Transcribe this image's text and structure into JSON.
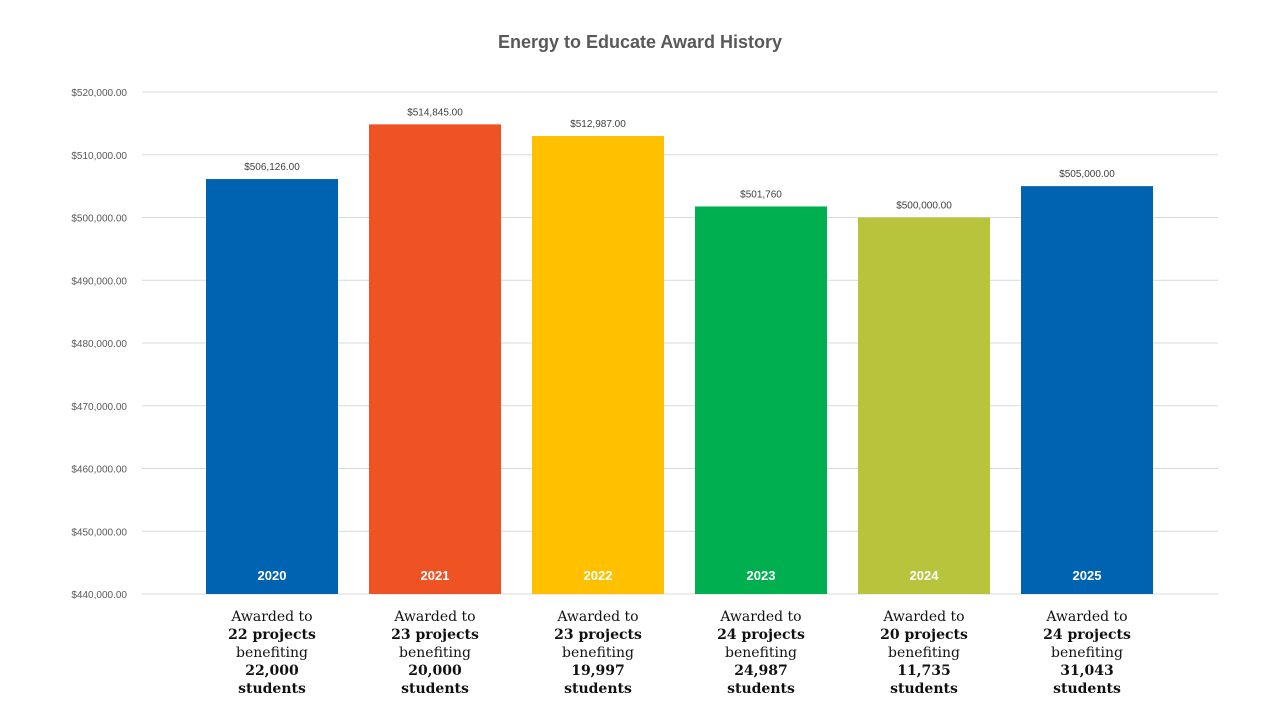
{
  "chart_data": {
    "type": "bar",
    "title": "Energy to Educate Award History",
    "categories": [
      "2020",
      "2021",
      "2022",
      "2023",
      "2024",
      "2025"
    ],
    "values": [
      506126,
      514845,
      512987,
      501760,
      500000,
      505000
    ],
    "data_labels": [
      "$506,126.00",
      "$514,845.00",
      "$512,987.00",
      "$501,760",
      "$500,000.00",
      "$505,000.00"
    ],
    "colors": [
      "#0063B1",
      "#F05323",
      "#FFC000",
      "#00B050",
      "#B8C43B",
      "#0063B1"
    ],
    "ylim": [
      440000,
      520000
    ],
    "yticks": [
      440000,
      450000,
      460000,
      470000,
      480000,
      490000,
      500000,
      510000,
      520000
    ],
    "ytick_labels": [
      "$440,000.00",
      "$450,000.00",
      "$460,000.00",
      "$470,000.00",
      "$480,000.00",
      "$490,000.00",
      "$500,000.00",
      "$510,000.00",
      "$520,000.00"
    ],
    "grid": true,
    "xlabel": "",
    "ylabel": ""
  },
  "captions": [
    {
      "l1": "Awarded to",
      "l2": "22 projects",
      "l3": "benefiting",
      "l4": "22,000",
      "l5": "students"
    },
    {
      "l1": "Awarded to",
      "l2": "23 projects",
      "l3": "benefiting",
      "l4": "20,000",
      "l5": "students"
    },
    {
      "l1": "Awarded to",
      "l2": "23 projects",
      "l3": "benefiting",
      "l4": "19,997",
      "l5": "students"
    },
    {
      "l1": "Awarded to",
      "l2": "24 projects",
      "l3": "benefiting",
      "l4": "24,987",
      "l5": "students"
    },
    {
      "l1": "Awarded to",
      "l2": "20 projects",
      "l3": "benefiting",
      "l4": "11,735",
      "l5": "students"
    },
    {
      "l1": "Awarded to",
      "l2": "24 projects",
      "l3": "benefiting",
      "l4": "31,043",
      "l5": "students"
    }
  ]
}
